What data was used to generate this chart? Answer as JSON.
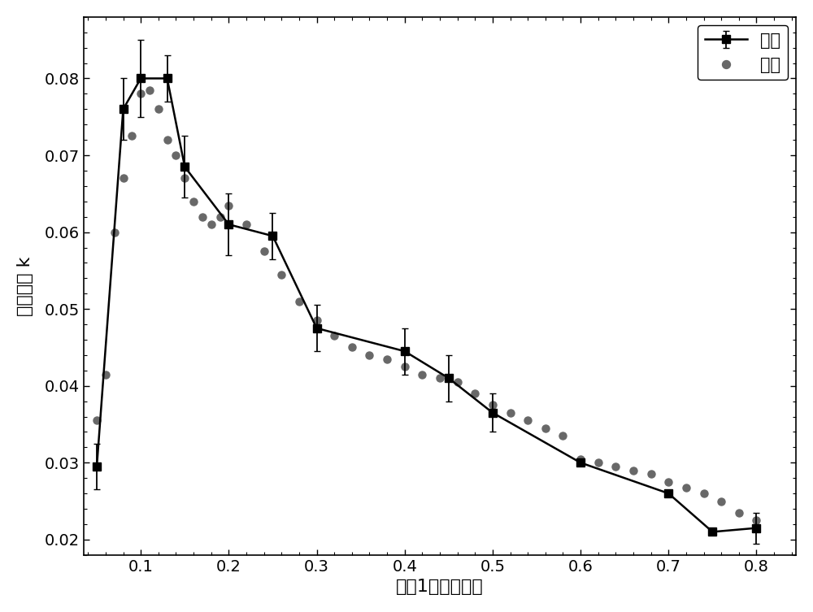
{
  "exp_x": [
    0.05,
    0.08,
    0.1,
    0.13,
    0.15,
    0.2,
    0.25,
    0.3,
    0.4,
    0.45,
    0.5,
    0.6,
    0.7,
    0.75,
    0.8
  ],
  "exp_y": [
    0.0295,
    0.076,
    0.08,
    0.08,
    0.0685,
    0.061,
    0.0595,
    0.0475,
    0.0445,
    0.041,
    0.0365,
    0.03,
    0.026,
    0.021,
    0.0215
  ],
  "exp_yerr": [
    0.003,
    0.004,
    0.005,
    0.003,
    0.004,
    0.004,
    0.003,
    0.003,
    0.003,
    0.003,
    0.0025,
    0.0,
    0.0,
    0.0,
    0.002
  ],
  "sim_x": [
    0.03,
    0.05,
    0.06,
    0.07,
    0.08,
    0.09,
    0.1,
    0.11,
    0.12,
    0.13,
    0.14,
    0.15,
    0.16,
    0.17,
    0.18,
    0.19,
    0.2,
    0.22,
    0.24,
    0.26,
    0.28,
    0.3,
    0.32,
    0.34,
    0.36,
    0.38,
    0.4,
    0.42,
    0.44,
    0.46,
    0.48,
    0.5,
    0.52,
    0.54,
    0.56,
    0.58,
    0.6,
    0.62,
    0.64,
    0.66,
    0.68,
    0.7,
    0.72,
    0.74,
    0.76,
    0.78,
    0.8
  ],
  "sim_y": [
    0.0225,
    0.0355,
    0.0415,
    0.06,
    0.067,
    0.0725,
    0.078,
    0.0785,
    0.076,
    0.072,
    0.07,
    0.067,
    0.064,
    0.062,
    0.061,
    0.062,
    0.0635,
    0.061,
    0.0575,
    0.0545,
    0.051,
    0.0485,
    0.0465,
    0.045,
    0.044,
    0.0435,
    0.0425,
    0.0415,
    0.041,
    0.0405,
    0.039,
    0.0375,
    0.0365,
    0.0355,
    0.0345,
    0.0335,
    0.0305,
    0.03,
    0.0295,
    0.029,
    0.0285,
    0.0275,
    0.0268,
    0.026,
    0.025,
    0.0235,
    0.0225
  ],
  "exp_color": "#000000",
  "sim_color": "#686868",
  "xlabel_pre": "能级",
  "xlabel_bold": "1",
  "xlabel_post": "相对布居数",
  "ylabel_pre": "比例因子 ",
  "ylabel_bold": "k",
  "xlim": [
    0.035,
    0.845
  ],
  "ylim": [
    0.018,
    0.088
  ],
  "xticks": [
    0.1,
    0.2,
    0.3,
    0.4,
    0.5,
    0.6,
    0.7,
    0.8
  ],
  "yticks": [
    0.02,
    0.03,
    0.04,
    0.05,
    0.06,
    0.07,
    0.08
  ],
  "legend_exp": "实验",
  "legend_sim": "仿真",
  "axis_fontsize": 16,
  "tick_fontsize": 14,
  "legend_fontsize": 15
}
